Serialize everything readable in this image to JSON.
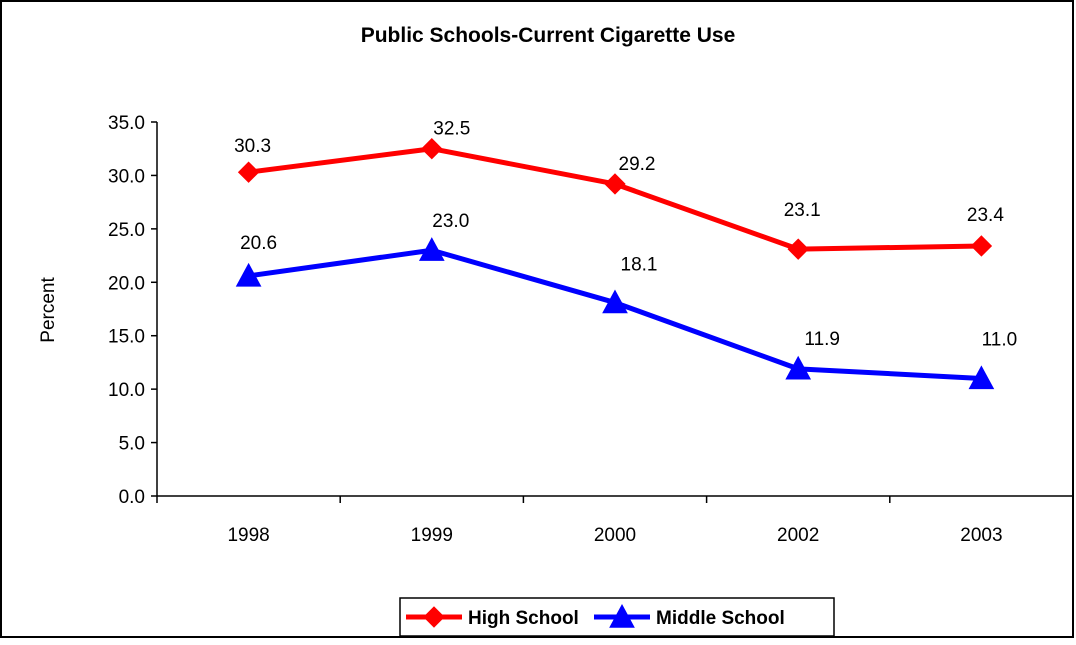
{
  "chart_data": {
    "type": "line",
    "title": "Public Schools-Current Cigarette Use",
    "xlabel": "",
    "ylabel": "Percent",
    "categories": [
      "1998",
      "1999",
      "2000",
      "2002",
      "2003"
    ],
    "ylim": [
      0,
      35
    ],
    "y_ticks": [
      "0.0",
      "5.0",
      "10.0",
      "15.0",
      "20.0",
      "25.0",
      "30.0",
      "35.0"
    ],
    "grid": false,
    "legend_position": "bottom",
    "series": [
      {
        "name": "High School",
        "values": [
          30.3,
          32.5,
          29.2,
          23.1,
          23.4
        ],
        "labels": [
          "30.3",
          "32.5",
          "29.2",
          "23.1",
          "23.4"
        ],
        "color": "#ff0000",
        "marker": "diamond"
      },
      {
        "name": "Middle School",
        "values": [
          20.6,
          23.0,
          18.1,
          11.9,
          11.0
        ],
        "labels": [
          "20.6",
          "23.0",
          "18.1",
          "11.9",
          "11.0"
        ],
        "color": "#0000ff",
        "marker": "triangle"
      }
    ]
  }
}
